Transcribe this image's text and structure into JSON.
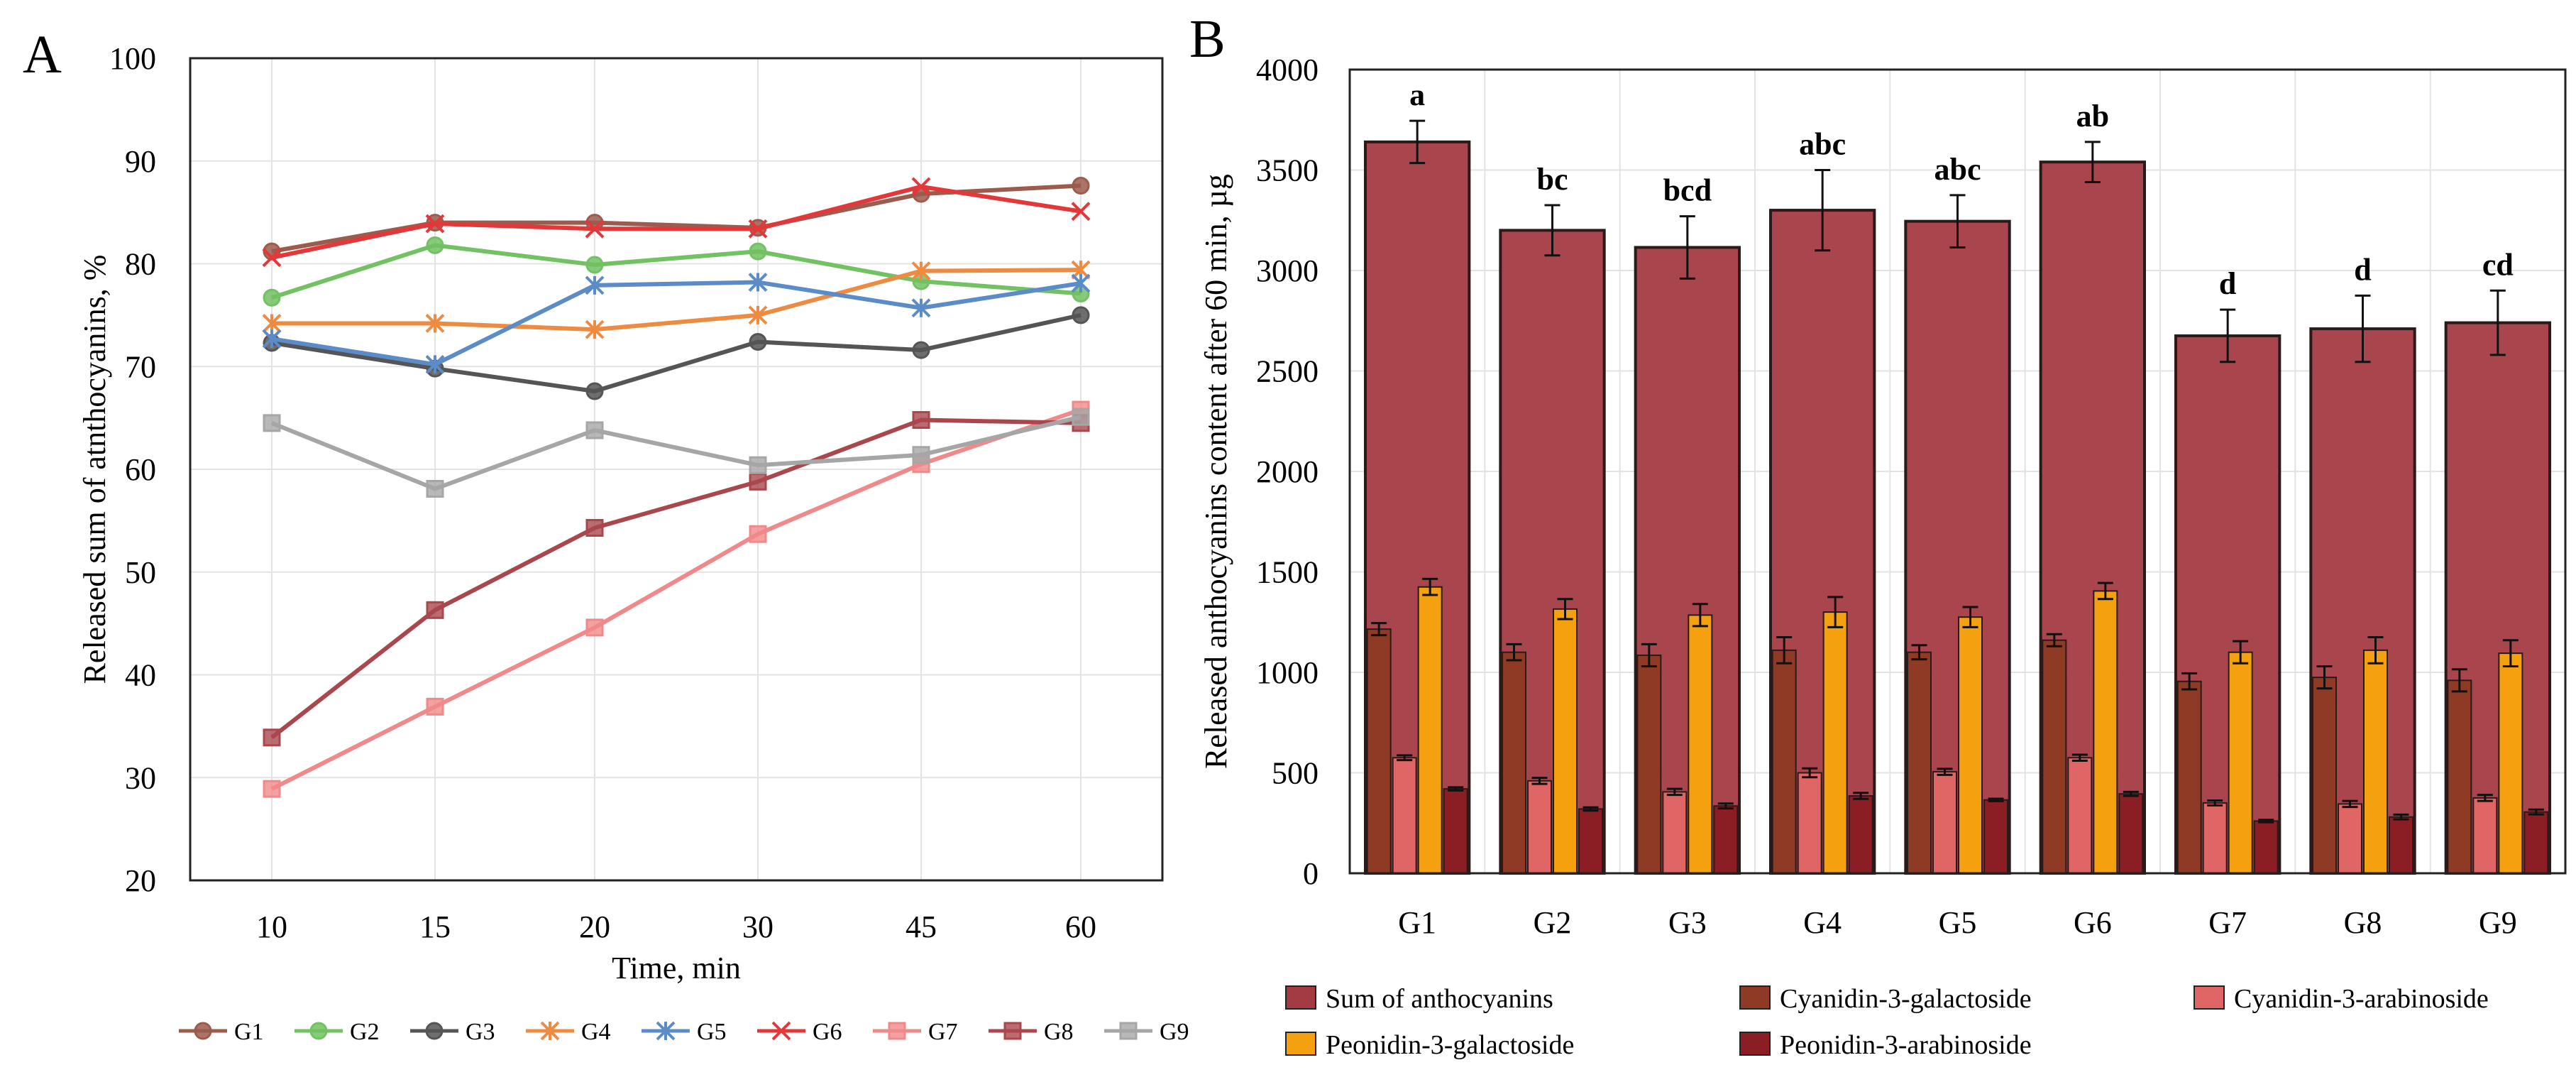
{
  "chart_data": [
    {
      "panel_label": "A",
      "type": "line",
      "xlabel": "Time, min",
      "ylabel": "Released sum of atnthocyanins, %",
      "categories": [
        "10",
        "15",
        "20",
        "30",
        "45",
        "60"
      ],
      "ylim": [
        20,
        100
      ],
      "yticks": [
        "20",
        "30",
        "40",
        "50",
        "60",
        "70",
        "80",
        "90",
        "100"
      ],
      "grid": true,
      "legend_position": "bottom",
      "series": [
        {
          "name": "G1",
          "color": "#9b5c4e",
          "marker": "circle",
          "values": [
            81.2,
            84.0,
            84.0,
            83.5,
            86.8,
            87.6
          ]
        },
        {
          "name": "G2",
          "color": "#72c162",
          "marker": "circle",
          "values": [
            76.7,
            81.8,
            79.9,
            81.2,
            78.3,
            77.1
          ]
        },
        {
          "name": "G3",
          "color": "#555555",
          "marker": "circle",
          "values": [
            72.3,
            69.8,
            67.6,
            72.4,
            71.6,
            75.0
          ]
        },
        {
          "name": "G4",
          "color": "#ee8b43",
          "marker": "star",
          "values": [
            74.2,
            74.2,
            73.6,
            75.0,
            79.3,
            79.4
          ]
        },
        {
          "name": "G5",
          "color": "#5b8cc8",
          "marker": "star",
          "values": [
            72.7,
            70.2,
            77.9,
            78.2,
            75.7,
            78.1
          ]
        },
        {
          "name": "G6",
          "color": "#e2383a",
          "marker": "x",
          "values": [
            80.6,
            83.9,
            83.4,
            83.4,
            87.5,
            85.1
          ]
        },
        {
          "name": "G7",
          "color": "#f0898a",
          "marker": "square",
          "values": [
            28.9,
            36.9,
            44.6,
            53.7,
            60.5,
            65.8
          ]
        },
        {
          "name": "G8",
          "color": "#a9474d",
          "marker": "square",
          "values": [
            33.9,
            46.3,
            54.3,
            58.8,
            64.8,
            64.5
          ]
        },
        {
          "name": "G9",
          "color": "#a6a6a6",
          "marker": "square",
          "values": [
            64.5,
            58.1,
            63.8,
            60.4,
            61.4,
            65.1
          ]
        }
      ]
    },
    {
      "panel_label": "B",
      "type": "bar",
      "xlabel": "",
      "ylabel": "Released anthocyanins content after 60 min, µg",
      "categories": [
        "G1",
        "G2",
        "G3",
        "G4",
        "G5",
        "G6",
        "G7",
        "G8",
        "G9"
      ],
      "ylim": [
        0,
        4000
      ],
      "yticks": [
        "0",
        "500",
        "1000",
        "1500",
        "2000",
        "2500",
        "3000",
        "3500",
        "4000"
      ],
      "grid": true,
      "legend_position": "bottom",
      "significance_letters": [
        "a",
        "bc",
        "bcd",
        "abc",
        "abc",
        "ab",
        "d",
        "d",
        "cd"
      ],
      "series": [
        {
          "name": "Sum of anthocyanins",
          "color": "#a33b43",
          "values": [
            3640,
            3200,
            3115,
            3300,
            3245,
            3540,
            2675,
            2710,
            2740
          ],
          "errors": [
            105,
            125,
            155,
            200,
            130,
            100,
            130,
            165,
            160
          ]
        },
        {
          "name": "Cyanidin-3-galactoside",
          "color": "#8e3a24",
          "values": [
            1215,
            1100,
            1085,
            1110,
            1100,
            1160,
            955,
            975,
            960
          ],
          "errors": [
            30,
            40,
            55,
            65,
            35,
            30,
            40,
            55,
            55
          ]
        },
        {
          "name": "Cyanidin-3-arabinoside",
          "color": "#e06666",
          "values": [
            575,
            460,
            405,
            500,
            505,
            575,
            350,
            345,
            375
          ],
          "errors": [
            12,
            15,
            15,
            22,
            15,
            15,
            12,
            15,
            15
          ]
        },
        {
          "name": "Peonidin-3-galactoside",
          "color": "#f4a00f",
          "values": [
            1425,
            1315,
            1285,
            1300,
            1275,
            1405,
            1100,
            1110,
            1095
          ],
          "errors": [
            40,
            50,
            55,
            75,
            50,
            40,
            55,
            65,
            65
          ]
        },
        {
          "name": "Peonidin-3-arabinoside",
          "color": "#8b1d24",
          "values": [
            420,
            320,
            335,
            385,
            365,
            395,
            260,
            280,
            305
          ],
          "errors": [
            8,
            8,
            12,
            15,
            6,
            10,
            6,
            12,
            12
          ]
        }
      ]
    }
  ]
}
